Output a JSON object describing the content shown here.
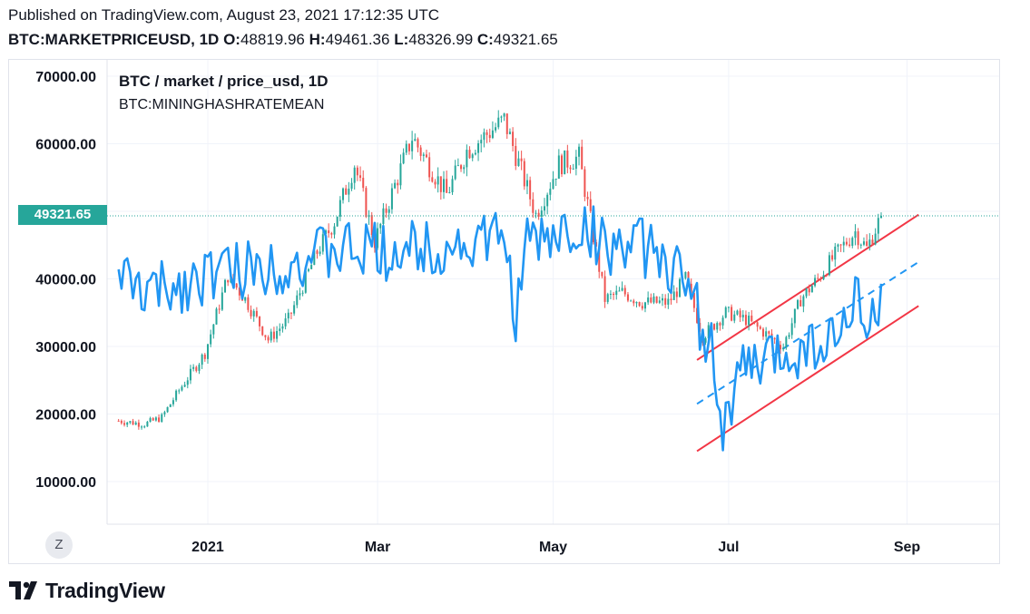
{
  "header": {
    "published": "Published on TradingView.com, August 23, 2021 17:12:35 UTC",
    "symbol": "BTC:MARKETPRICEUSD, 1D",
    "o_label": "O:",
    "o_value": "48819.96",
    "h_label": "H:",
    "h_value": "49461.36",
    "l_label": "L:",
    "l_value": "48326.99",
    "c_label": "C:",
    "c_value": "49321.65"
  },
  "legend": {
    "main_series": "BTC / market / price_usd, 1D",
    "overlay_series": "BTC:MININGHASHRATEMEAN"
  },
  "last_price_label": "49321.65",
  "zoom_button_label": "Z",
  "brand": {
    "name": "TradingView"
  },
  "colors": {
    "up_candle": "#26a69a",
    "down_candle": "#ef5350",
    "overlay_line": "#2196f3",
    "channel_line": "#f23645",
    "grid": "#f0f3fa",
    "last_price": "#26a69a"
  },
  "chart_data": {
    "type": "candlestick",
    "interval": "1D",
    "yaxis": {
      "ticks": [
        10000,
        20000,
        30000,
        40000,
        50000,
        60000,
        70000
      ],
      "tick_labels": [
        "10000.00",
        "20000.00",
        "30000.00",
        "40000.00",
        "",
        "60000.00",
        "70000.00"
      ],
      "ylim": [
        7000,
        73000
      ]
    },
    "xaxis": {
      "ticks": [
        "2021-01-01",
        "2021-03-01",
        "2021-05-01",
        "2021-07-01",
        "2021-09-01"
      ],
      "tick_labels": [
        "2021",
        "Mar",
        "May",
        "Jul",
        "Sep"
      ],
      "xlim": [
        "2020-11-27",
        "2021-10-03"
      ]
    },
    "grid": true,
    "last_price": 49321.65,
    "price_path": [
      [
        "2020-12-01",
        19000
      ],
      [
        "2020-12-10",
        18500
      ],
      [
        "2020-12-16",
        19500
      ],
      [
        "2020-12-22",
        23500
      ],
      [
        "2020-12-31",
        29000
      ],
      [
        "2021-01-08",
        40500
      ],
      [
        "2021-01-14",
        37000
      ],
      [
        "2021-01-22",
        31000
      ],
      [
        "2021-01-29",
        34000
      ],
      [
        "2021-02-08",
        44000
      ],
      [
        "2021-02-14",
        48500
      ],
      [
        "2021-02-21",
        57000
      ],
      [
        "2021-02-28",
        45500
      ],
      [
        "2021-03-13",
        61000
      ],
      [
        "2021-03-25",
        52500
      ],
      [
        "2021-04-01",
        59000
      ],
      [
        "2021-04-14",
        63500
      ],
      [
        "2021-04-25",
        49500
      ],
      [
        "2021-05-03",
        57000
      ],
      [
        "2021-05-10",
        58000
      ],
      [
        "2021-05-19",
        37000
      ],
      [
        "2021-05-25",
        38000
      ],
      [
        "2021-06-01",
        36500
      ],
      [
        "2021-06-10",
        36500
      ],
      [
        "2021-06-16",
        40000
      ],
      [
        "2021-06-22",
        31500
      ],
      [
        "2021-06-30",
        35000
      ],
      [
        "2021-07-07",
        34000
      ],
      [
        "2021-07-20",
        30000
      ],
      [
        "2021-07-26",
        37000
      ],
      [
        "2021-08-01",
        40000
      ],
      [
        "2021-08-07",
        43500
      ],
      [
        "2021-08-14",
        47000
      ],
      [
        "2021-08-18",
        44500
      ],
      [
        "2021-08-23",
        49300
      ]
    ],
    "hashrate_series": {
      "name": "BTC:MININGHASHRATEMEAN",
      "scale_reference_values": [
        20000,
        50000
      ],
      "path": [
        [
          "2020-12-01",
          42000
        ],
        [
          "2020-12-05",
          38500
        ],
        [
          "2020-12-15",
          38000
        ],
        [
          "2020-12-25",
          39500
        ],
        [
          "2021-01-01",
          41000
        ],
        [
          "2021-01-15",
          41500
        ],
        [
          "2021-02-01",
          42500
        ],
        [
          "2021-02-15",
          44000
        ],
        [
          "2021-03-01",
          44000
        ],
        [
          "2021-03-15",
          44500
        ],
        [
          "2021-04-01",
          45000
        ],
        [
          "2021-04-14",
          46000
        ],
        [
          "2021-04-18",
          35000
        ],
        [
          "2021-04-22",
          45000
        ],
        [
          "2021-05-01",
          46000
        ],
        [
          "2021-05-10",
          47500
        ],
        [
          "2021-05-20",
          45000
        ],
        [
          "2021-06-01",
          44500
        ],
        [
          "2021-06-10",
          43000
        ],
        [
          "2021-06-18",
          37000
        ],
        [
          "2021-06-25",
          30000
        ],
        [
          "2021-06-29",
          17500
        ],
        [
          "2021-07-05",
          26000
        ],
        [
          "2021-07-15",
          28000
        ],
        [
          "2021-07-25",
          29500
        ],
        [
          "2021-08-05",
          31000
        ],
        [
          "2021-08-12",
          32500
        ],
        [
          "2021-08-15",
          40500
        ],
        [
          "2021-08-18",
          30500
        ],
        [
          "2021-08-23",
          37500
        ]
      ]
    },
    "trend_channel": {
      "upper": [
        [
          "2021-06-20",
          28000
        ],
        [
          "2021-09-05",
          49500
        ]
      ],
      "middle_dashed": [
        [
          "2021-06-20",
          21500
        ],
        [
          "2021-09-05",
          42500
        ]
      ],
      "lower": [
        [
          "2021-06-20",
          14500
        ],
        [
          "2021-09-05",
          36000
        ]
      ]
    }
  }
}
